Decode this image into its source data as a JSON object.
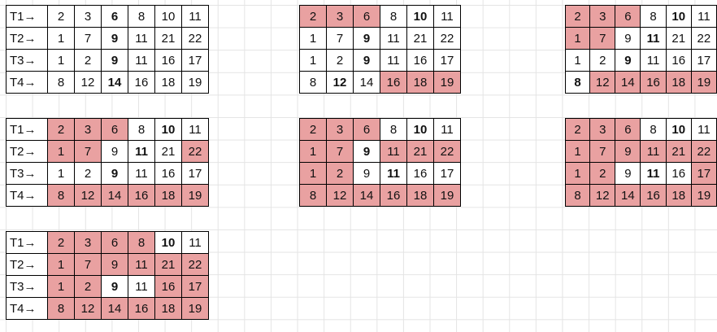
{
  "highlight_color": "#e9a1a1",
  "grids": [
    {
      "rows": [
        {
          "label": "T1→",
          "cells": [
            {
              "v": "2"
            },
            {
              "v": "3"
            },
            {
              "v": "6",
              "b": true
            },
            {
              "v": "8"
            },
            {
              "v": "10"
            },
            {
              "v": "11"
            }
          ]
        },
        {
          "label": "T2→",
          "cells": [
            {
              "v": "1"
            },
            {
              "v": "7"
            },
            {
              "v": "9",
              "b": true
            },
            {
              "v": "11"
            },
            {
              "v": "21"
            },
            {
              "v": "22"
            }
          ]
        },
        {
          "label": "T3→",
          "cells": [
            {
              "v": "1"
            },
            {
              "v": "2"
            },
            {
              "v": "9",
              "b": true
            },
            {
              "v": "11"
            },
            {
              "v": "16"
            },
            {
              "v": "17"
            }
          ]
        },
        {
          "label": "T4→",
          "cells": [
            {
              "v": "8"
            },
            {
              "v": "12"
            },
            {
              "v": "14",
              "b": true
            },
            {
              "v": "16"
            },
            {
              "v": "18"
            },
            {
              "v": "19"
            }
          ]
        }
      ]
    },
    {
      "rows": [
        {
          "cells": [
            {
              "v": "2",
              "h": true
            },
            {
              "v": "3",
              "h": true
            },
            {
              "v": "6",
              "h": true
            },
            {
              "v": "8"
            },
            {
              "v": "10",
              "b": true
            },
            {
              "v": "11"
            }
          ]
        },
        {
          "cells": [
            {
              "v": "1"
            },
            {
              "v": "7"
            },
            {
              "v": "9",
              "b": true
            },
            {
              "v": "11"
            },
            {
              "v": "21"
            },
            {
              "v": "22"
            }
          ]
        },
        {
          "cells": [
            {
              "v": "1"
            },
            {
              "v": "2"
            },
            {
              "v": "9",
              "b": true
            },
            {
              "v": "11"
            },
            {
              "v": "16"
            },
            {
              "v": "17"
            }
          ]
        },
        {
          "cells": [
            {
              "v": "8"
            },
            {
              "v": "12",
              "b": true
            },
            {
              "v": "14"
            },
            {
              "v": "16",
              "h": true
            },
            {
              "v": "18",
              "h": true
            },
            {
              "v": "19",
              "h": true
            }
          ]
        }
      ]
    },
    {
      "rows": [
        {
          "cells": [
            {
              "v": "2",
              "h": true
            },
            {
              "v": "3",
              "h": true
            },
            {
              "v": "6",
              "h": true
            },
            {
              "v": "8"
            },
            {
              "v": "10",
              "b": true
            },
            {
              "v": "11"
            }
          ]
        },
        {
          "cells": [
            {
              "v": "1",
              "h": true
            },
            {
              "v": "7",
              "h": true
            },
            {
              "v": "9"
            },
            {
              "v": "11",
              "b": true
            },
            {
              "v": "21"
            },
            {
              "v": "22"
            }
          ]
        },
        {
          "cells": [
            {
              "v": "1"
            },
            {
              "v": "2"
            },
            {
              "v": "9",
              "b": true
            },
            {
              "v": "11"
            },
            {
              "v": "16"
            },
            {
              "v": "17"
            }
          ]
        },
        {
          "cells": [
            {
              "v": "8",
              "b": true
            },
            {
              "v": "12",
              "h": true
            },
            {
              "v": "14",
              "h": true
            },
            {
              "v": "16",
              "h": true
            },
            {
              "v": "18",
              "h": true
            },
            {
              "v": "19",
              "h": true
            }
          ]
        }
      ]
    },
    {
      "rows": [
        {
          "label": "T1→",
          "cells": [
            {
              "v": "2",
              "h": true
            },
            {
              "v": "3",
              "h": true
            },
            {
              "v": "6",
              "h": true
            },
            {
              "v": "8"
            },
            {
              "v": "10",
              "b": true
            },
            {
              "v": "11"
            }
          ]
        },
        {
          "label": "T2→",
          "cells": [
            {
              "v": "1",
              "h": true
            },
            {
              "v": "7",
              "h": true
            },
            {
              "v": "9"
            },
            {
              "v": "11",
              "b": true
            },
            {
              "v": "21"
            },
            {
              "v": "22",
              "h": true
            }
          ]
        },
        {
          "label": "T3→",
          "cells": [
            {
              "v": "1"
            },
            {
              "v": "2"
            },
            {
              "v": "9",
              "b": true
            },
            {
              "v": "11"
            },
            {
              "v": "16"
            },
            {
              "v": "17"
            }
          ]
        },
        {
          "label": "T4→",
          "cells": [
            {
              "v": "8",
              "h": true
            },
            {
              "v": "12",
              "h": true
            },
            {
              "v": "14",
              "h": true
            },
            {
              "v": "16",
              "h": true
            },
            {
              "v": "18",
              "h": true
            },
            {
              "v": "19",
              "h": true
            }
          ]
        }
      ]
    },
    {
      "rows": [
        {
          "cells": [
            {
              "v": "2",
              "h": true
            },
            {
              "v": "3",
              "h": true
            },
            {
              "v": "6",
              "h": true
            },
            {
              "v": "8"
            },
            {
              "v": "10",
              "b": true
            },
            {
              "v": "11"
            }
          ]
        },
        {
          "cells": [
            {
              "v": "1",
              "h": true
            },
            {
              "v": "7",
              "h": true
            },
            {
              "v": "9",
              "b": true
            },
            {
              "v": "11",
              "h": true
            },
            {
              "v": "21",
              "h": true
            },
            {
              "v": "22",
              "h": true
            }
          ]
        },
        {
          "cells": [
            {
              "v": "1",
              "h": true
            },
            {
              "v": "2",
              "h": true
            },
            {
              "v": "9"
            },
            {
              "v": "11",
              "b": true
            },
            {
              "v": "16"
            },
            {
              "v": "17"
            }
          ]
        },
        {
          "cells": [
            {
              "v": "8",
              "h": true
            },
            {
              "v": "12",
              "h": true
            },
            {
              "v": "14",
              "h": true
            },
            {
              "v": "16",
              "h": true
            },
            {
              "v": "18",
              "h": true
            },
            {
              "v": "19",
              "h": true
            }
          ]
        }
      ]
    },
    {
      "rows": [
        {
          "cells": [
            {
              "v": "2",
              "h": true
            },
            {
              "v": "3",
              "h": true
            },
            {
              "v": "6",
              "h": true
            },
            {
              "v": "8"
            },
            {
              "v": "10",
              "b": true
            },
            {
              "v": "11"
            }
          ]
        },
        {
          "cells": [
            {
              "v": "1",
              "h": true
            },
            {
              "v": "7",
              "h": true
            },
            {
              "v": "9",
              "h": true
            },
            {
              "v": "11",
              "h": true
            },
            {
              "v": "21",
              "h": true
            },
            {
              "v": "22",
              "h": true
            }
          ]
        },
        {
          "cells": [
            {
              "v": "1",
              "h": true
            },
            {
              "v": "2",
              "h": true
            },
            {
              "v": "9"
            },
            {
              "v": "11",
              "b": true
            },
            {
              "v": "16"
            },
            {
              "v": "17",
              "h": true
            }
          ]
        },
        {
          "cells": [
            {
              "v": "8",
              "h": true
            },
            {
              "v": "12",
              "h": true
            },
            {
              "v": "14",
              "h": true
            },
            {
              "v": "16",
              "h": true
            },
            {
              "v": "18",
              "h": true
            },
            {
              "v": "19",
              "h": true
            }
          ]
        }
      ]
    },
    {
      "rows": [
        {
          "label": "T1→",
          "cells": [
            {
              "v": "2",
              "h": true
            },
            {
              "v": "3",
              "h": true
            },
            {
              "v": "6",
              "h": true
            },
            {
              "v": "8",
              "h": true
            },
            {
              "v": "10",
              "b": true
            },
            {
              "v": "11"
            }
          ]
        },
        {
          "label": "T2→",
          "cells": [
            {
              "v": "1",
              "h": true
            },
            {
              "v": "7",
              "h": true
            },
            {
              "v": "9",
              "h": true
            },
            {
              "v": "11",
              "h": true
            },
            {
              "v": "21",
              "h": true
            },
            {
              "v": "22",
              "h": true
            }
          ]
        },
        {
          "label": "T3→",
          "cells": [
            {
              "v": "1",
              "h": true
            },
            {
              "v": "2",
              "h": true
            },
            {
              "v": "9",
              "b": true
            },
            {
              "v": "11"
            },
            {
              "v": "16",
              "h": true
            },
            {
              "v": "17",
              "h": true
            }
          ]
        },
        {
          "label": "T4→",
          "cells": [
            {
              "v": "8",
              "h": true
            },
            {
              "v": "12",
              "h": true
            },
            {
              "v": "14",
              "h": true
            },
            {
              "v": "16",
              "h": true
            },
            {
              "v": "18",
              "h": true
            },
            {
              "v": "19",
              "h": true
            }
          ]
        }
      ]
    }
  ]
}
